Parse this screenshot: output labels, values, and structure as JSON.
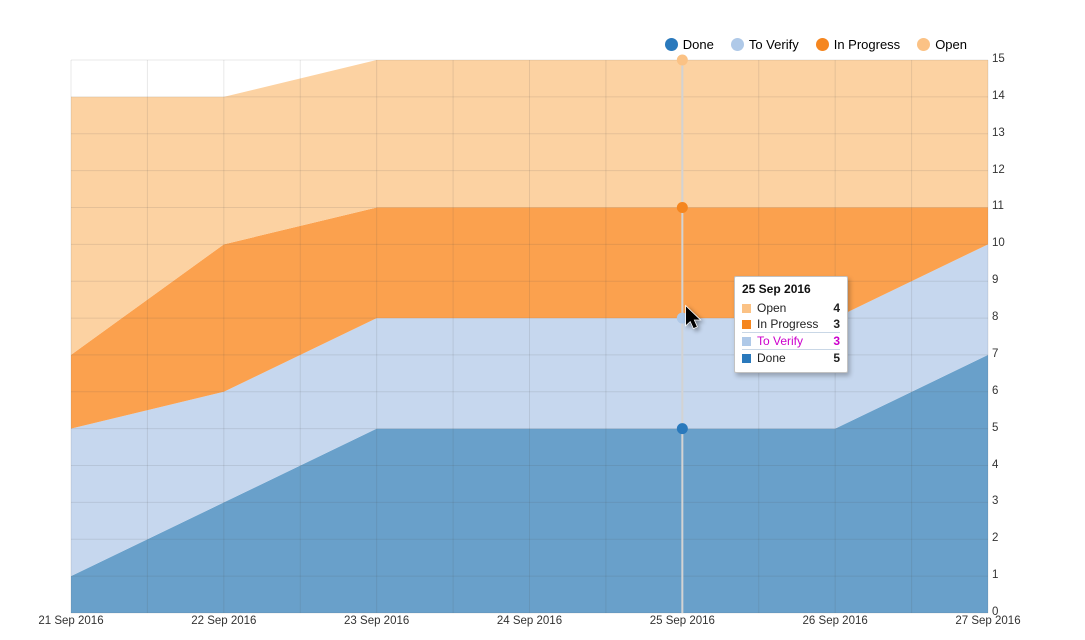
{
  "chart_data": {
    "type": "area",
    "stacked": true,
    "x": [
      "21 Sep 2016",
      "22 Sep 2016",
      "23 Sep 2016",
      "24 Sep 2016",
      "25 Sep 2016",
      "26 Sep 2016",
      "27 Sep 2016"
    ],
    "series": [
      {
        "name": "Done",
        "values": [
          1,
          3,
          5,
          5,
          5,
          5,
          7
        ],
        "fill": "#69A0CA",
        "marker": "#2A79BC"
      },
      {
        "name": "To Verify",
        "values": [
          4,
          3,
          3,
          3,
          3,
          3,
          3
        ],
        "fill": "#C6D7EE",
        "marker": "#AFC9E8"
      },
      {
        "name": "In Progress",
        "values": [
          2,
          4,
          3,
          3,
          3,
          3,
          1
        ],
        "fill": "#FBA14E",
        "marker": "#F5861F"
      },
      {
        "name": "Open",
        "values": [
          7,
          4,
          4,
          4,
          4,
          4,
          4
        ],
        "fill": "#FCD2A2",
        "marker": "#FBC285"
      }
    ],
    "stack_totals": [
      14,
      14,
      15,
      15,
      15,
      15,
      15
    ],
    "ylim": [
      0,
      15
    ],
    "yticks": [
      0,
      1,
      2,
      3,
      4,
      5,
      6,
      7,
      8,
      9,
      10,
      11,
      12,
      13,
      14,
      15
    ],
    "grid": true,
    "legend_position": "top-right",
    "hover": {
      "x_label": "25 Sep 2016",
      "x_index": 4,
      "cumulative": [
        5,
        8,
        11,
        15
      ]
    }
  },
  "legend": {
    "items": [
      {
        "label": "Done",
        "color": "#2A79BC"
      },
      {
        "label": "To Verify",
        "color": "#AFC9E8"
      },
      {
        "label": "In Progress",
        "color": "#F5861F"
      },
      {
        "label": "Open",
        "color": "#FBC285"
      }
    ]
  },
  "tooltip": {
    "title": "25 Sep 2016",
    "rows": [
      {
        "label": "Open",
        "value": "4",
        "swatch": "#FBC285",
        "highlighted": false
      },
      {
        "label": "In Progress",
        "value": "3",
        "swatch": "#F5861F",
        "highlighted": false
      },
      {
        "label": "To Verify",
        "value": "3",
        "swatch": "#AFC9E8",
        "highlighted": true
      },
      {
        "label": "Done",
        "value": "5",
        "swatch": "#2A79BC",
        "highlighted": false
      }
    ],
    "highlight_color": "#CC00CC"
  },
  "colors": {
    "gridline": "rgba(80,80,80,0.13)",
    "crosshair": "#D3D3D3",
    "axis_text": "#333333"
  }
}
